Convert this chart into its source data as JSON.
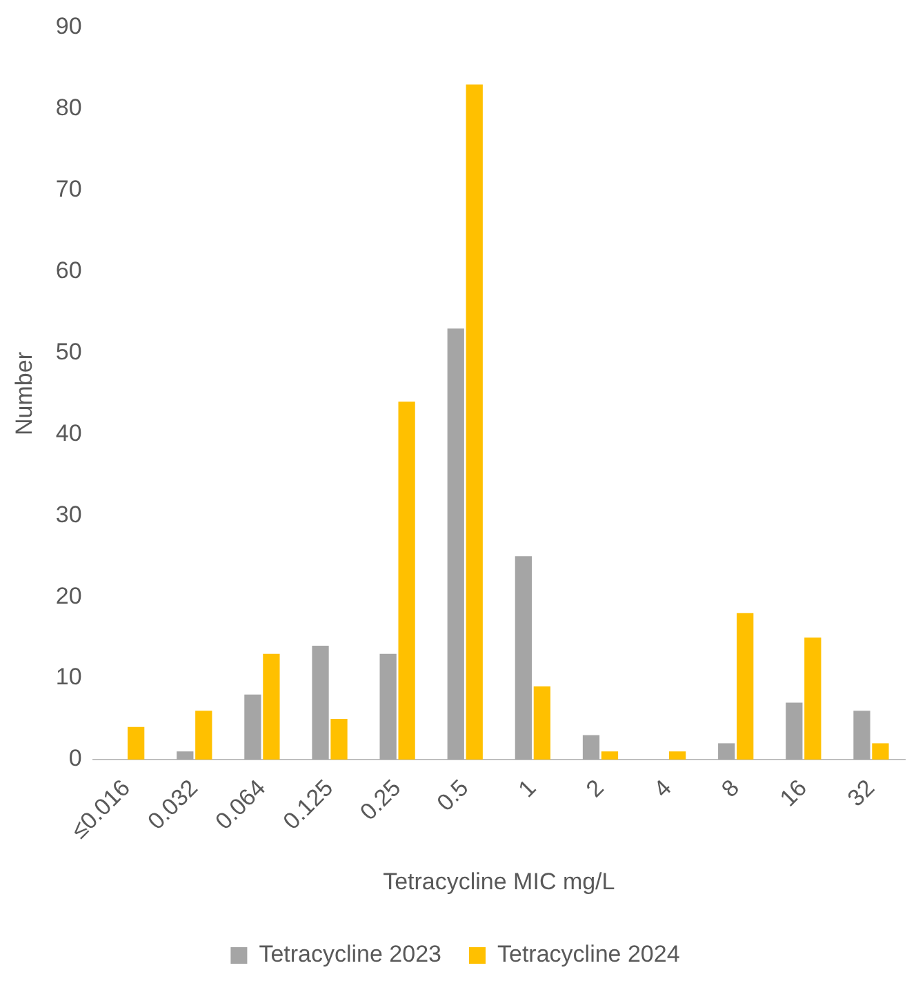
{
  "chart_data": {
    "type": "bar",
    "xlabel": "Tetracycline MIC mg/L",
    "ylabel": "Number",
    "categories": [
      "≤0.016",
      "0.032",
      "0.064",
      "0.125",
      "0.25",
      "0.5",
      "1",
      "2",
      "4",
      "8",
      "16",
      "32"
    ],
    "series": [
      {
        "name": "Tetracycline 2023",
        "color": "#a5a5a5",
        "values": [
          0,
          1,
          8,
          14,
          13,
          53,
          25,
          3,
          0,
          2,
          7,
          6
        ]
      },
      {
        "name": "Tetracycline 2024",
        "color": "#ffc000",
        "values": [
          4,
          6,
          13,
          5,
          44,
          83,
          9,
          1,
          1,
          18,
          15,
          2
        ]
      }
    ],
    "ylim": [
      0,
      90
    ],
    "yticks": [
      0,
      10,
      20,
      30,
      40,
      50,
      60,
      70,
      80,
      90
    ],
    "grid": false,
    "legend": "bottom"
  }
}
